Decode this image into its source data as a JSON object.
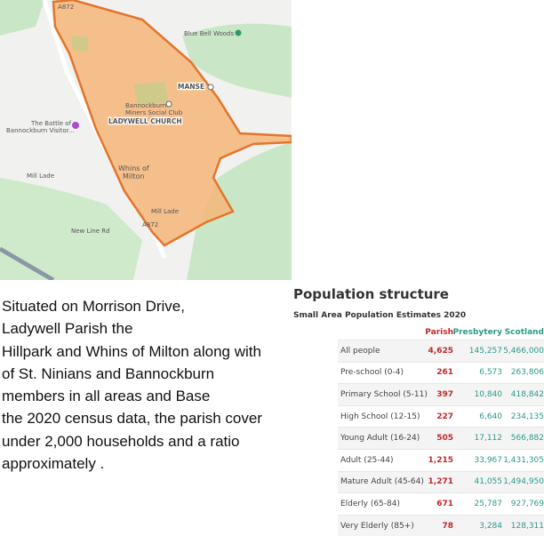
{
  "map": {
    "labels": [
      "Blue Bell Woods",
      "MANSE",
      "Bannockburn",
      "Miners Social Club",
      "LADYWELL CHURCH",
      "The Battle of",
      "Bannockburn Visitor...",
      "Whins of",
      "Milton",
      "Mill Lade",
      "Mill Lade",
      "A872",
      "A872",
      "New Line Rd"
    ]
  },
  "paragraph": {
    "lines": [
      "Situated on Morrison Drive,",
      "Ladywell Parish      the",
      "Hillpark and Whins of Milton along with",
      "of St. Ninians and Bannockburn",
      "members in all areas and      Base",
      "the 2020 census data, the parish cover",
      "under 2,000 households and a ratio",
      "approximately      ."
    ]
  },
  "table": {
    "title": "Population structure",
    "subtitle": "Small Area Population Estimates 2020",
    "header": [
      "Parish",
      "Presbytery",
      "Scotland"
    ],
    "rows": [
      [
        "All people",
        "4,625",
        "145,257",
        "5,466,000"
      ],
      [
        "Pre-school (0-4)",
        "261",
        "6,573",
        "263,806"
      ],
      [
        "Primary School (5-11)",
        "397",
        "10,840",
        "418,842"
      ],
      [
        "High School (12-15)",
        "227",
        "6,640",
        "234,135"
      ],
      [
        "Young Adult (16-24)",
        "505",
        "17,112",
        "566,882"
      ],
      [
        "Adult (25-44)",
        "1,215",
        "33,967",
        "1,431,305"
      ],
      [
        "Mature Adult (45-64)",
        "1,271",
        "41,055",
        "1,494,950"
      ],
      [
        "Elderly (65-84)",
        "671",
        "25,787",
        "927,769"
      ],
      [
        "Very Elderly (85+)",
        "78",
        "3,284",
        "128,311"
      ]
    ]
  }
}
